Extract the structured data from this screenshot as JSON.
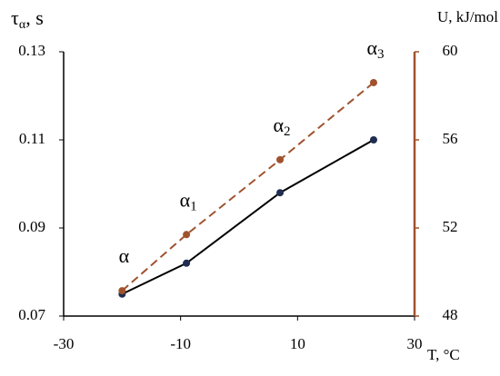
{
  "chart_data": {
    "type": "line",
    "xlabel": "T, °C",
    "ylabel": {
      "base": "τ",
      "sub": "α",
      "rest": ", s"
    },
    "y2label": "U, kJ/mol",
    "xlim": [
      -30,
      30
    ],
    "xticks": [
      -30,
      -10,
      10,
      30
    ],
    "ylim": [
      0.07,
      0.13
    ],
    "yticks": [
      0.07,
      0.09,
      0.11,
      0.13
    ],
    "y2lim": [
      48,
      60
    ],
    "y2ticks": [
      48,
      52,
      56,
      60
    ],
    "y2color": "#a0522d",
    "series": [
      {
        "name": "τα",
        "color": "#000000",
        "marker_color": "#1f2d50",
        "dash": false,
        "x": [
          -20,
          -9,
          7,
          23
        ],
        "values": [
          0.075,
          0.082,
          0.098,
          0.11
        ]
      },
      {
        "name": "U",
        "color": "#a0522d",
        "marker_color": "#a0522d",
        "dash": true,
        "axis": "y2",
        "x": [
          -20,
          -9,
          7,
          23
        ],
        "values": [
          49.15,
          51.7,
          55.1,
          58.6
        ],
        "point_labels": [
          {
            "base": "α",
            "sub": ""
          },
          {
            "base": "α",
            "sub": "1"
          },
          {
            "base": "α",
            "sub": "2"
          },
          {
            "base": "α",
            "sub": "3"
          }
        ]
      }
    ]
  }
}
